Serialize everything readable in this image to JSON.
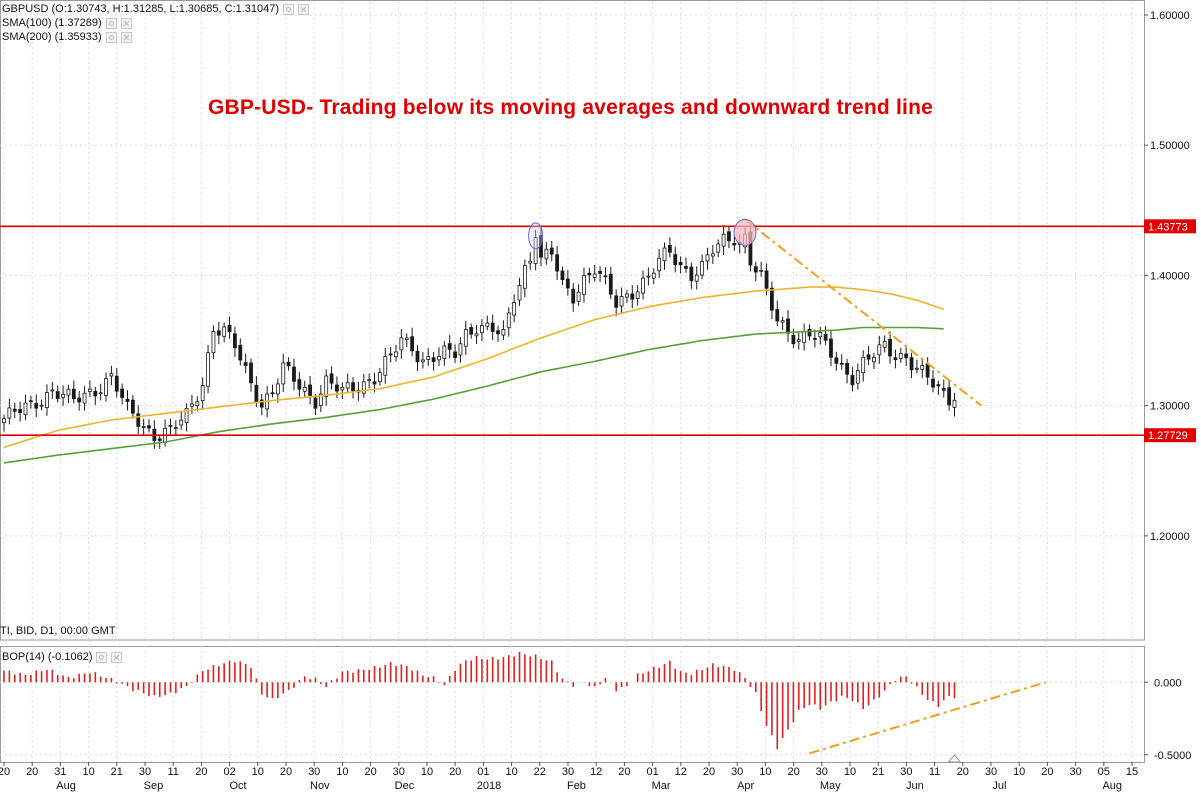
{
  "legend": {
    "symbol_line": "GBPUSD (O:1.30743, H:1.31285, L:1.30685, C:1.31047)",
    "sma100_line": "SMA(100) (1.37289)",
    "sma200_line": "SMA(200) (1.35933)"
  },
  "title": "GBP-USD- Trading below its moving averages and downward trend line",
  "panel_info": "TI, BID, D1, 00:00 GMT",
  "bop_legend": "BOP(14) (-0.1062)",
  "colors": {
    "up_candle": "#1a1a1a",
    "down_candle": "#1a1a1a",
    "sma100": "#f0b429",
    "sma200": "#55a03a",
    "resistance": "#e00000",
    "trend": "#f0a020",
    "bop_bar": "#e02020",
    "ellipse_stroke": "#6a6ad0",
    "ellipse_fill": "#f4b8c0"
  },
  "chart_data": {
    "type": "candlestick",
    "symbol": "GBPUSD",
    "timeframe": "D1",
    "ylim": [
      1.12,
      1.61
    ],
    "y_ticks": [
      "1.60000",
      "1.50000",
      "1.40000",
      "1.30000",
      "1.20000"
    ],
    "y_tick_values": [
      1.6,
      1.5,
      1.4,
      1.3,
      1.2
    ],
    "price_tags": [
      {
        "label": "1.43773",
        "value": 1.43773
      },
      {
        "label": "1.27729",
        "value": 1.27729
      }
    ],
    "x_ticks": [
      "20",
      "20",
      "31",
      "10",
      "21",
      "30",
      "11",
      "20",
      "02",
      "10",
      "20",
      "30",
      "10",
      "20",
      "30",
      "10",
      "20",
      "01",
      "10",
      "22",
      "30",
      "12",
      "20",
      "01",
      "12",
      "20",
      "30",
      "10",
      "20",
      "30",
      "10",
      "21",
      "30",
      "11",
      "20",
      "30",
      "10",
      "20",
      "30",
      "05",
      "15"
    ],
    "months": [
      "Aug",
      "Sep",
      "Oct",
      "Nov",
      "Dec",
      "2018",
      "Feb",
      "Mar",
      "Apr",
      "May",
      "Jun",
      "Jul",
      "Aug"
    ],
    "close_path": [
      [
        0,
        1.29
      ],
      [
        5,
        1.3
      ],
      [
        9,
        1.312
      ],
      [
        13,
        1.303
      ],
      [
        17,
        1.313
      ],
      [
        20,
        1.322
      ],
      [
        23,
        1.296
      ],
      [
        26,
        1.285
      ],
      [
        28,
        1.278
      ],
      [
        31,
        1.28
      ],
      [
        34,
        1.292
      ],
      [
        37,
        1.318
      ],
      [
        39,
        1.36
      ],
      [
        41,
        1.356
      ],
      [
        43,
        1.345
      ],
      [
        46,
        1.318
      ],
      [
        48,
        1.302
      ],
      [
        50,
        1.31
      ],
      [
        52,
        1.328
      ],
      [
        55,
        1.316
      ],
      [
        58,
        1.305
      ],
      [
        60,
        1.318
      ],
      [
        63,
        1.31
      ],
      [
        66,
        1.316
      ],
      [
        69,
        1.322
      ],
      [
        72,
        1.336
      ],
      [
        74,
        1.35
      ],
      [
        76,
        1.346
      ],
      [
        78,
        1.335
      ],
      [
        81,
        1.338
      ],
      [
        84,
        1.34
      ],
      [
        86,
        1.356
      ],
      [
        88,
        1.362
      ],
      [
        91,
        1.358
      ],
      [
        93,
        1.352
      ],
      [
        95,
        1.384
      ],
      [
        97,
        1.406
      ],
      [
        99,
        1.422
      ],
      [
        100,
        1.412
      ],
      [
        102,
        1.416
      ],
      [
        104,
        1.392
      ],
      [
        106,
        1.385
      ],
      [
        108,
        1.398
      ],
      [
        110,
        1.405
      ],
      [
        112,
        1.392
      ],
      [
        114,
        1.378
      ],
      [
        116,
        1.385
      ],
      [
        118,
        1.392
      ],
      [
        120,
        1.398
      ],
      [
        122,
        1.41
      ],
      [
        124,
        1.418
      ],
      [
        126,
        1.408
      ],
      [
        128,
        1.402
      ],
      [
        130,
        1.406
      ],
      [
        132,
        1.418
      ],
      [
        134,
        1.426
      ],
      [
        136,
        1.43
      ],
      [
        138,
        1.42
      ],
      [
        139,
        1.412
      ],
      [
        141,
        1.398
      ],
      [
        142,
        1.385
      ],
      [
        144,
        1.365
      ],
      [
        146,
        1.358
      ],
      [
        148,
        1.352
      ],
      [
        150,
        1.355
      ],
      [
        152,
        1.35
      ],
      [
        154,
        1.34
      ],
      [
        156,
        1.33
      ],
      [
        158,
        1.323
      ],
      [
        160,
        1.332
      ],
      [
        162,
        1.338
      ],
      [
        164,
        1.345
      ],
      [
        166,
        1.34
      ],
      [
        168,
        1.338
      ],
      [
        170,
        1.328
      ],
      [
        172,
        1.32
      ],
      [
        174,
        1.312
      ],
      [
        176,
        1.306
      ],
      [
        177,
        1.31
      ]
    ],
    "peak_bars": [
      99,
      138
    ],
    "peak_values": [
      1.435,
      1.4377
    ],
    "sma100": [
      [
        0,
        1.268
      ],
      [
        10,
        1.281
      ],
      [
        20,
        1.289
      ],
      [
        30,
        1.294
      ],
      [
        40,
        1.299
      ],
      [
        50,
        1.304
      ],
      [
        60,
        1.308
      ],
      [
        70,
        1.313
      ],
      [
        80,
        1.322
      ],
      [
        90,
        1.336
      ],
      [
        100,
        1.352
      ],
      [
        110,
        1.366
      ],
      [
        120,
        1.376
      ],
      [
        130,
        1.383
      ],
      [
        140,
        1.388
      ],
      [
        150,
        1.391
      ],
      [
        155,
        1.391
      ],
      [
        160,
        1.389
      ],
      [
        165,
        1.386
      ],
      [
        170,
        1.381
      ],
      [
        175,
        1.374
      ]
    ],
    "sma200": [
      [
        0,
        1.256
      ],
      [
        10,
        1.262
      ],
      [
        20,
        1.267
      ],
      [
        30,
        1.272
      ],
      [
        40,
        1.28
      ],
      [
        50,
        1.286
      ],
      [
        60,
        1.291
      ],
      [
        70,
        1.297
      ],
      [
        80,
        1.305
      ],
      [
        90,
        1.315
      ],
      [
        100,
        1.326
      ],
      [
        110,
        1.334
      ],
      [
        120,
        1.343
      ],
      [
        130,
        1.35
      ],
      [
        140,
        1.355
      ],
      [
        150,
        1.357
      ],
      [
        155,
        1.358
      ],
      [
        160,
        1.36
      ],
      [
        165,
        1.36
      ],
      [
        170,
        1.36
      ],
      [
        175,
        1.359
      ]
    ],
    "resistance_lines": [
      1.43773,
      1.27729
    ],
    "trend_line": [
      [
        138,
        1.443
      ],
      [
        182,
        1.3
      ]
    ],
    "bop": {
      "ylim": [
        -0.55,
        0.25
      ],
      "ticks": [
        "0.000",
        "-0.5000"
      ],
      "tick_values": [
        0.0,
        -0.5
      ],
      "values": [
        [
          0,
          0.08
        ],
        [
          4,
          0.05
        ],
        [
          8,
          0.09
        ],
        [
          12,
          0.03
        ],
        [
          16,
          0.07
        ],
        [
          20,
          0.02
        ],
        [
          24,
          -0.05
        ],
        [
          28,
          -0.1
        ],
        [
          31,
          -0.08
        ],
        [
          34,
          -0.03
        ],
        [
          37,
          0.08
        ],
        [
          40,
          0.12
        ],
        [
          43,
          0.15
        ],
        [
          46,
          0.11
        ],
        [
          48,
          -0.08
        ],
        [
          50,
          -0.12
        ],
        [
          53,
          -0.06
        ],
        [
          56,
          0.04
        ],
        [
          58,
          0.02
        ],
        [
          60,
          -0.03
        ],
        [
          63,
          0.07
        ],
        [
          66,
          0.08
        ],
        [
          69,
          0.1
        ],
        [
          72,
          0.13
        ],
        [
          75,
          0.11
        ],
        [
          78,
          0.05
        ],
        [
          80,
          0.03
        ],
        [
          82,
          -0.02
        ],
        [
          84,
          0.09
        ],
        [
          86,
          0.15
        ],
        [
          88,
          0.17
        ],
        [
          90,
          0.16
        ],
        [
          93,
          0.17
        ],
        [
          96,
          0.2
        ],
        [
          99,
          0.18
        ],
        [
          102,
          0.14
        ],
        [
          104,
          0.02
        ],
        [
          106,
          -0.02
        ],
        [
          108,
          0.0
        ],
        [
          110,
          -0.04
        ],
        [
          112,
          0.03
        ],
        [
          114,
          -0.05
        ],
        [
          116,
          -0.03
        ],
        [
          118,
          0.05
        ],
        [
          120,
          0.08
        ],
        [
          122,
          0.11
        ],
        [
          124,
          0.14
        ],
        [
          126,
          0.07
        ],
        [
          128,
          0.06
        ],
        [
          130,
          0.09
        ],
        [
          132,
          0.12
        ],
        [
          134,
          0.11
        ],
        [
          136,
          0.09
        ],
        [
          138,
          0.03
        ],
        [
          140,
          -0.08
        ],
        [
          142,
          -0.3
        ],
        [
          144,
          -0.45
        ],
        [
          146,
          -0.33
        ],
        [
          148,
          -0.2
        ],
        [
          150,
          -0.15
        ],
        [
          152,
          -0.18
        ],
        [
          154,
          -0.14
        ],
        [
          156,
          -0.1
        ],
        [
          158,
          -0.12
        ],
        [
          160,
          -0.18
        ],
        [
          162,
          -0.13
        ],
        [
          164,
          -0.06
        ],
        [
          166,
          0.02
        ],
        [
          168,
          0.04
        ],
        [
          170,
          -0.04
        ],
        [
          172,
          -0.12
        ],
        [
          174,
          -0.16
        ],
        [
          176,
          -0.1
        ],
        [
          177,
          -0.1
        ]
      ],
      "trend_line": [
        [
          150,
          -0.49
        ],
        [
          194,
          -0.0
        ]
      ]
    }
  }
}
